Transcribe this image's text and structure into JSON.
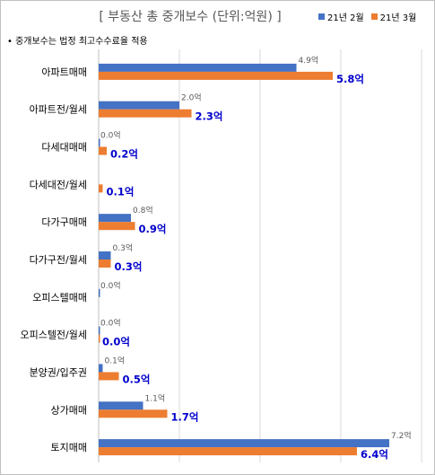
{
  "colors": {
    "series1": "#4472c4",
    "series2": "#ed7d31",
    "series2_label": "#0000cc",
    "grid": "#d9d9d9",
    "axis": "#bfbfbf"
  },
  "title": "[ 부동산 총 중개보수 (단위:억원) ]",
  "note": "• 중개보수는 법정 최고수수료율 적용",
  "legend": [
    {
      "label": "21년 2월"
    },
    {
      "label": "21년 3월"
    }
  ],
  "chart_data": {
    "type": "bar",
    "orientation": "horizontal",
    "title": "[ 부동산 총 중개보수 (단위:억원) ]",
    "categories": [
      "아파트매매",
      "아파트전/월세",
      "다세대매매",
      "다세대전/월세",
      "다가구매매",
      "다가구전/월세",
      "오피스텔매매",
      "오피스텔전/월세",
      "분양권/입주권",
      "상가매매",
      "토지매매"
    ],
    "series": [
      {
        "name": "21년 2월",
        "values": [
          4.9,
          2.0,
          0.0,
          null,
          0.8,
          0.3,
          0.0,
          0.0,
          0.1,
          1.1,
          7.2
        ],
        "labels": [
          "4.9억",
          "2.0억",
          "0.0억",
          "",
          "0.8억",
          "0.3억",
          "0.0억",
          "0.0억",
          "0.1억",
          "1.1억",
          "7.2억"
        ]
      },
      {
        "name": "21년 3월",
        "values": [
          5.8,
          2.3,
          0.2,
          0.1,
          0.9,
          0.3,
          null,
          0.0,
          0.5,
          1.7,
          6.4
        ],
        "labels": [
          "5.8억",
          "2.3억",
          "0.2억",
          "0.1억",
          "0.9억",
          "0.3억",
          "",
          "0.0억",
          "0.5억",
          "1.7억",
          "6.4억"
        ]
      }
    ],
    "xlim": [
      0,
      8
    ],
    "grid": true,
    "legend_position": "top-right"
  }
}
